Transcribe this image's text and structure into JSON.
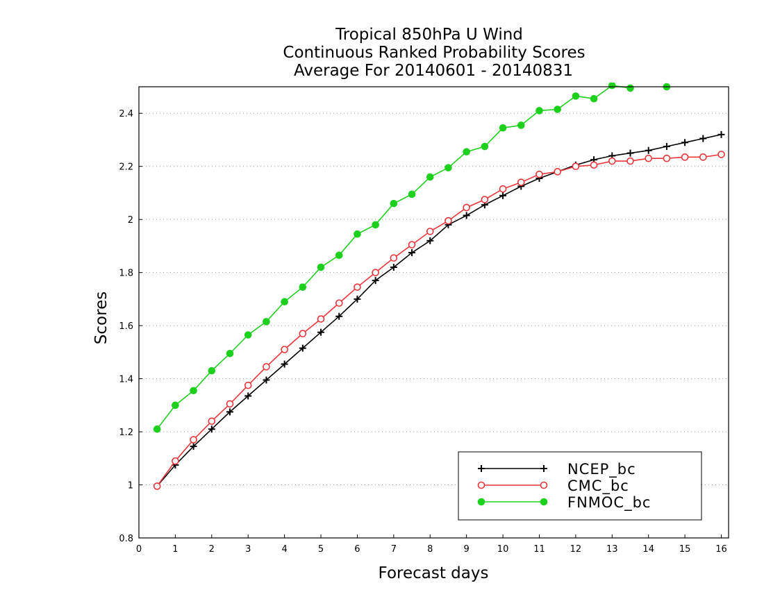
{
  "chart_data": {
    "type": "line",
    "title_lines": [
      "Tropical 850hPa U Wind",
      "Continuous Ranked Probability Scores",
      "Average For 20140601 - 20140831"
    ],
    "xlabel": "Forecast days",
    "ylabel": "Scores",
    "xlim": [
      0,
      16.2
    ],
    "ylim": [
      0.8,
      2.5
    ],
    "x_ticks": [
      0,
      1,
      2,
      3,
      4,
      5,
      6,
      7,
      8,
      9,
      10,
      11,
      12,
      13,
      14,
      15,
      16
    ],
    "y_ticks": [
      0.8,
      1,
      1.2,
      1.4,
      1.6,
      1.8,
      2,
      2.2,
      2.4
    ],
    "y_tick_labels": [
      "0.8",
      "1",
      "1.2",
      "1.4",
      "1.6",
      "1.8",
      "2",
      "2.2",
      "2.4"
    ],
    "grid": "horizontal dotted",
    "legend_position": "bottom-right",
    "x": [
      0.5,
      1.0,
      1.5,
      2.0,
      2.5,
      3.0,
      3.5,
      4.0,
      4.5,
      5.0,
      5.5,
      6.0,
      6.5,
      7.0,
      7.5,
      8.0,
      8.5,
      9.0,
      9.5,
      10.0,
      10.5,
      11.0,
      11.5,
      12.0,
      12.5,
      13.0,
      13.5,
      14.0,
      14.5,
      15.0,
      15.5,
      16.0
    ],
    "series": [
      {
        "name": "NCEP_bc",
        "color": "#000000",
        "marker": "plus",
        "values": [
          0.995,
          1.075,
          1.145,
          1.21,
          1.275,
          1.335,
          1.395,
          1.455,
          1.515,
          1.575,
          1.635,
          1.7,
          1.77,
          1.82,
          1.875,
          1.92,
          1.98,
          2.015,
          2.055,
          2.09,
          2.125,
          2.155,
          2.18,
          2.205,
          2.225,
          2.24,
          2.25,
          2.26,
          2.275,
          2.29,
          2.305,
          2.32
        ]
      },
      {
        "name": "CMC_bc",
        "color": "#e8363a",
        "marker": "open-circle",
        "values": [
          0.995,
          1.09,
          1.17,
          1.24,
          1.305,
          1.375,
          1.445,
          1.51,
          1.57,
          1.625,
          1.685,
          1.745,
          1.8,
          1.855,
          1.905,
          1.955,
          1.995,
          2.045,
          2.075,
          2.115,
          2.14,
          2.17,
          2.18,
          2.2,
          2.205,
          2.22,
          2.22,
          2.23,
          2.23,
          2.235,
          2.235,
          2.245
        ]
      },
      {
        "name": "FNMOC_bc",
        "color": "#1ed01e",
        "marker": "filled-circle",
        "values": [
          1.21,
          1.3,
          1.355,
          1.43,
          1.495,
          1.565,
          1.615,
          1.69,
          1.745,
          1.82,
          1.865,
          1.945,
          1.98,
          2.06,
          2.095,
          2.16,
          2.195,
          2.255,
          2.275,
          2.345,
          2.355,
          2.41,
          2.415,
          2.465,
          2.455,
          2.505,
          2.495,
          null,
          2.5,
          null,
          null,
          null
        ]
      }
    ]
  }
}
